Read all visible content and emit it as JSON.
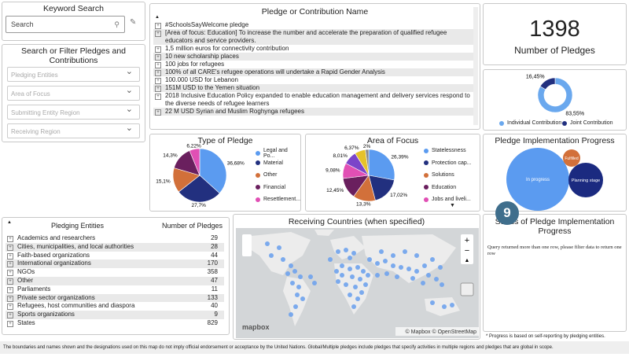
{
  "keyword_search": {
    "title": "Keyword Search",
    "placeholder": "Search"
  },
  "filters": {
    "title": "Search or Filter Pledges and Contributions",
    "dropdowns": [
      "Pledging Entities",
      "Area of Focus",
      "Submitting Entity Region",
      "Receiving Region"
    ]
  },
  "pledge_list": {
    "title": "Pledge or Contribution Name",
    "items": [
      "#SchoolsSayWelcome pledge",
      "[Area of focus: Education] To increase the number and accelerate the preparation of qualified refugee educators and service providers.",
      "1,5 million euros for connectivity contribution",
      "10 new scholarship places",
      "100 jobs for refugees",
      "100% of all CARE's refugee operations will undertake a Rapid Gender Analysis",
      "100.000 USD for Lebanon",
      "151M USD to the Yemen situation",
      "2018 Inclusive Education Policy expanded to enable education management and delivery services respond to the diverse needs of refugee learners",
      "22 M USD Syrian and Muslim Roghynga refugees"
    ]
  },
  "pledge_count": {
    "value": 1398,
    "label": "Number of Pledges"
  },
  "contribution_type": {
    "slices": [
      {
        "name": "Individual Contribution",
        "color": "#6aa8ee",
        "value": 83.55,
        "value_label": "83,55%"
      },
      {
        "name": "Joint Contribution",
        "color": "#22307f",
        "value": 16.45,
        "value_label": "16,45%"
      }
    ]
  },
  "type_of_pledge": {
    "title": "Type of Pledge",
    "slices": [
      {
        "name": "Legal and Po...",
        "color": "#5b9bf0",
        "value": 36.68,
        "value_label": "36,68%"
      },
      {
        "name": "Material",
        "color": "#22307f",
        "value": 27.7,
        "value_label": "27,7%"
      },
      {
        "name": "Other",
        "color": "#d2703a",
        "value": 15.1,
        "value_label": "15,1%"
      },
      {
        "name": "Financial",
        "color": "#6a1f5e",
        "value": 14.3,
        "value_label": "14,3%"
      },
      {
        "name": "Resettlement...",
        "color": "#e14fb4",
        "value": 6.22,
        "value_label": "6,22%"
      }
    ]
  },
  "area_of_focus": {
    "title": "Area of Focus",
    "slices": [
      {
        "name": "Statelessness",
        "color": "#5b9bf0",
        "value": 26.39,
        "value_label": "26,39%"
      },
      {
        "name": "Protection cap...",
        "color": "#22307f",
        "value": 17.02,
        "value_label": "17,02%"
      },
      {
        "name": "Solutions",
        "color": "#d2703a",
        "value": 13.3,
        "value_label": "13,3%"
      },
      {
        "name": "Education",
        "color": "#6a1f5e",
        "value": 12.45,
        "value_label": "12,45%"
      },
      {
        "name": "Jobs and liveli...",
        "color": "#e14fb4",
        "value": 9.08,
        "value_label": "9,08%"
      },
      {
        "color": "#7b45c9",
        "value": 8.01,
        "value_label": "8,01%"
      },
      {
        "color": "#e6c229",
        "value": 6.37,
        "value_label": "6,37%"
      },
      {
        "color": "#8a8a8a",
        "value": 2,
        "value_label": "2%"
      }
    ]
  },
  "implementation_progress": {
    "title": "Pledge Implementation Progress",
    "bubbles": [
      "In progress",
      "Fulfilled",
      "Planning stage"
    ]
  },
  "pledging_entities": {
    "headers": [
      "Pledging Entities",
      "Number of Pledges"
    ],
    "rows": [
      [
        "Academics and researchers",
        29
      ],
      [
        "Cities, municipalities, and local authorities",
        28
      ],
      [
        "Faith-based organizations",
        44
      ],
      [
        "International organizations",
        170
      ],
      [
        "NGOs",
        358
      ],
      [
        "Other",
        47
      ],
      [
        "Parliaments",
        11
      ],
      [
        "Private sector organizations",
        133
      ],
      [
        "Refugees, host communities and diaspora",
        40
      ],
      [
        "Sports organizations",
        9
      ],
      [
        "States",
        829
      ]
    ]
  },
  "map": {
    "title": "Receiving Countries (when specified)",
    "logo": "mapbox",
    "attribution": "© Mapbox © OpenStreetMap"
  },
  "status": {
    "badge": 9,
    "title": "Status of Pledge Implementation Progress",
    "message": "Query returned more than one row, please filter data to return one row",
    "footnote": "* Progress is based on self-reporting by pledging entities."
  },
  "disclaimer": "The boundaries and names shown and the designations used on this map do not imply official endorsement or acceptance by the United Nations.  Global/Multiple pledges include pledges that specify activities in multiple regions and pledges that are global in scope."
}
